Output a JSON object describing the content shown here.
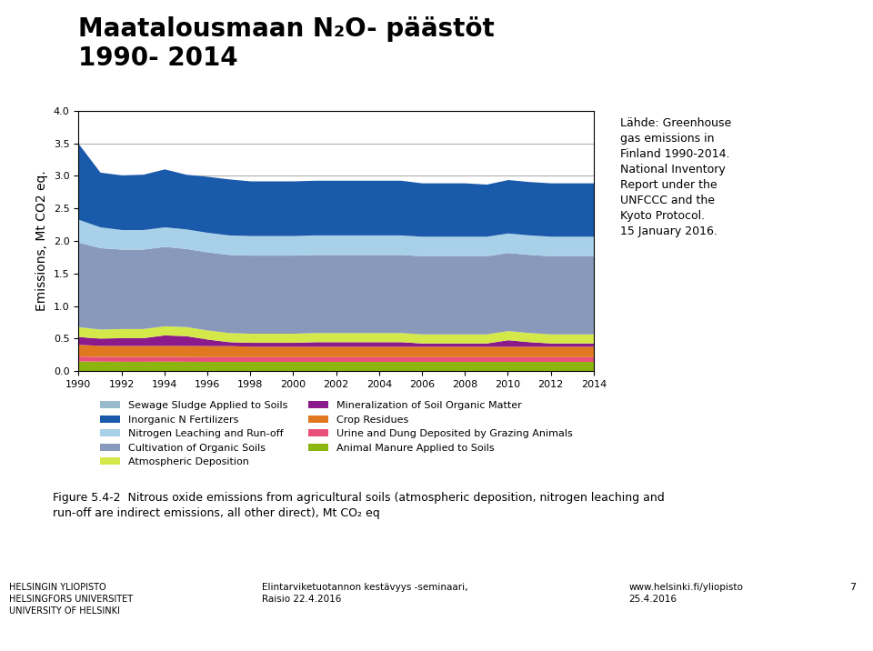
{
  "chart_data": {
    "type": "area",
    "stacked": true,
    "title": "Maatalousmaan N₂O- päästöt\n1990- 2014",
    "x": [
      1990,
      1991,
      1992,
      1993,
      1994,
      1995,
      1996,
      1997,
      1998,
      1999,
      2000,
      2001,
      2002,
      2003,
      2004,
      2005,
      2006,
      2007,
      2008,
      2009,
      2010,
      2011,
      2012,
      2013,
      2014
    ],
    "series": [
      {
        "name": "Animal Manure Applied to Soils",
        "color": "#8db510",
        "values": [
          0.155,
          0.152,
          0.15,
          0.15,
          0.152,
          0.15,
          0.148,
          0.148,
          0.148,
          0.148,
          0.148,
          0.148,
          0.148,
          0.148,
          0.148,
          0.148,
          0.148,
          0.148,
          0.148,
          0.148,
          0.148,
          0.148,
          0.148,
          0.148,
          0.148
        ]
      },
      {
        "name": "Urine and Dung Deposited by Grazing Animals",
        "color": "#e8507a",
        "values": [
          0.075,
          0.073,
          0.073,
          0.073,
          0.073,
          0.073,
          0.073,
          0.073,
          0.073,
          0.073,
          0.073,
          0.073,
          0.073,
          0.073,
          0.073,
          0.073,
          0.073,
          0.073,
          0.073,
          0.073,
          0.073,
          0.073,
          0.073,
          0.073,
          0.073
        ]
      },
      {
        "name": "Crop Residues",
        "color": "#e07820",
        "values": [
          0.18,
          0.17,
          0.17,
          0.17,
          0.17,
          0.17,
          0.17,
          0.17,
          0.16,
          0.16,
          0.16,
          0.16,
          0.16,
          0.16,
          0.16,
          0.16,
          0.16,
          0.16,
          0.16,
          0.16,
          0.16,
          0.16,
          0.16,
          0.16,
          0.16
        ]
      },
      {
        "name": "Mineralization of Soil Organic Matter",
        "color": "#8b1a8b",
        "values": [
          0.12,
          0.11,
          0.12,
          0.12,
          0.16,
          0.15,
          0.1,
          0.06,
          0.06,
          0.06,
          0.06,
          0.07,
          0.07,
          0.07,
          0.07,
          0.07,
          0.05,
          0.05,
          0.05,
          0.05,
          0.1,
          0.07,
          0.05,
          0.05,
          0.05
        ]
      },
      {
        "name": "Atmospheric Deposition",
        "color": "#d4e84a",
        "values": [
          0.15,
          0.14,
          0.14,
          0.14,
          0.14,
          0.14,
          0.14,
          0.14,
          0.14,
          0.14,
          0.14,
          0.14,
          0.14,
          0.14,
          0.14,
          0.14,
          0.14,
          0.14,
          0.14,
          0.14,
          0.14,
          0.14,
          0.14,
          0.14,
          0.14
        ]
      },
      {
        "name": "Cultivation of Organic Soils",
        "color": "#8899bb",
        "values": [
          1.3,
          1.25,
          1.22,
          1.22,
          1.22,
          1.2,
          1.2,
          1.2,
          1.2,
          1.2,
          1.2,
          1.2,
          1.2,
          1.2,
          1.2,
          1.2,
          1.2,
          1.2,
          1.2,
          1.2,
          1.2,
          1.2,
          1.2,
          1.2,
          1.2
        ]
      },
      {
        "name": "Nitrogen Leaching and Run-off",
        "color": "#a8d0e8",
        "values": [
          0.35,
          0.32,
          0.3,
          0.3,
          0.3,
          0.3,
          0.3,
          0.3,
          0.3,
          0.3,
          0.3,
          0.3,
          0.3,
          0.3,
          0.3,
          0.3,
          0.3,
          0.3,
          0.3,
          0.3,
          0.3,
          0.3,
          0.3,
          0.3,
          0.3
        ]
      },
      {
        "name": "Inorganic N Fertilizers",
        "color": "#1a5aaa",
        "values": [
          1.16,
          0.84,
          0.84,
          0.85,
          0.89,
          0.84,
          0.86,
          0.86,
          0.84,
          0.84,
          0.84,
          0.84,
          0.84,
          0.84,
          0.84,
          0.84,
          0.82,
          0.82,
          0.82,
          0.8,
          0.82,
          0.82,
          0.82,
          0.82,
          0.82
        ]
      },
      {
        "name": "Sewage Sludge Applied to Soils",
        "color": "#99bbcc",
        "values": [
          null,
          null,
          null,
          null,
          null,
          null,
          null,
          null,
          null,
          null,
          null,
          null,
          null,
          null,
          null,
          null,
          null,
          null,
          null,
          null,
          null,
          null,
          null,
          null,
          null
        ]
      }
    ],
    "y_label": "Emissions, Mt CO2 eq.",
    "xlim": [
      1990,
      2014
    ],
    "xticks": [
      1990,
      1992,
      1994,
      1996,
      1998,
      2000,
      2002,
      2004,
      2006,
      2008,
      2010,
      2012,
      2014
    ],
    "ylim": [
      0.0,
      4.0
    ],
    "yticks": [
      0.0,
      0.5,
      1.0,
      1.5,
      2.0,
      2.5,
      3.0,
      3.5,
      4.0
    ],
    "grid": "y",
    "legend": "upper center",
    "annotations": [
      "Lähde: Greenhouse\ngas emissions in\nFinland 1990-2014.\nNational Inventory\nReport under the\nUNFCCC and the\nKyoto Protocol.\n15 January 2016.",
      "Figure 5.4-2  Nitrous oxide emissions from agricultural soils (atmospheric deposition, nitrogen leaching and\nrun-off are indirect emissions, all other direct), Mt CO₂ eq",
      "HELSINGIN YLIOPISTO\nHELSINGFORS UNIVERSITET\nUNIVERSITY OF HELSINKI",
      "Elintarviketuotannon kestävyys -seminaari,\nRaisio 22.4.2016",
      "www.helsinki.fi/yliopisto\n25.4.2016",
      "7"
    ]
  }
}
